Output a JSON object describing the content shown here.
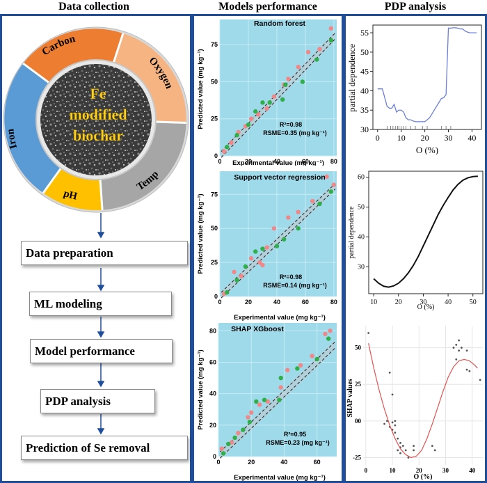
{
  "headers": {
    "data_collection": "Data collection",
    "models_performance": "Models performance",
    "pdp_analysis": "PDP analysis"
  },
  "ring": {
    "segments": [
      "Carbon",
      "Oxygen",
      "Temp",
      "pH",
      "Iron"
    ],
    "center_text": [
      "Fe",
      "modified",
      "biochar"
    ]
  },
  "steps": [
    "Data preparation",
    "ML modeling",
    "Model performance",
    "PDP analysis",
    "Prediction of Se removal"
  ],
  "colors": {
    "panel_border": "#1f4e9c",
    "plot_bg": "#9fdaeb",
    "pink_points": "#f0888a",
    "green_points": "#2fae4a",
    "carbon": "#ed7d31",
    "oxygen": "#f5b482",
    "temp": "#a6a6a6",
    "ph": "#ffc000",
    "iron": "#5b9bd5"
  },
  "scatter_plots": [
    {
      "title": "Random forest",
      "r2": "R²=0.98",
      "rmse": "RSME=0.35 (mg kg⁻¹)",
      "xlabel": "Experimental value (mg kg⁻¹)",
      "ylabel": "Predicted value (mg kg⁻¹)",
      "xticks": [
        "0",
        "20",
        "40",
        "60",
        "80"
      ],
      "yticks": [
        "0",
        "25",
        "50",
        "75"
      ]
    },
    {
      "title": "Support vector regression",
      "r2": "R²=0.98",
      "rmse": "RSME=0.14 (mg kg⁻¹)",
      "xlabel": "Experimental value (mg kg⁻¹)",
      "ylabel": "Predicted value (mg kg⁻¹)",
      "xticks": [
        "0",
        "20",
        "40",
        "60",
        "80"
      ],
      "yticks": [
        "0",
        "25",
        "50",
        "75"
      ]
    },
    {
      "title": "SHAP XGboost",
      "r2": "R²=0.95",
      "rmse": "RSME=0.23 (mg kg⁻¹)",
      "xlabel": "Experimental value (mg kg⁻¹)",
      "ylabel": "Predicted value (mg kg⁻¹)",
      "xticks": [
        "0",
        "20",
        "40",
        "60"
      ],
      "yticks": [
        "0",
        "20",
        "40",
        "60",
        "80"
      ]
    }
  ],
  "pdp_plots": [
    {
      "ylabel": "partial dependence",
      "xlabel": "O (%)",
      "xticks": [
        "0",
        "10",
        "20",
        "30",
        "40"
      ],
      "yticks": [
        "30",
        "35",
        "40",
        "45",
        "50",
        "55"
      ]
    },
    {
      "ylabel": "partial dependence",
      "xlabel": "O (%)",
      "xticks": [
        "10",
        "20",
        "30",
        "40",
        "50"
      ],
      "yticks": [
        "30",
        "40",
        "50",
        "60"
      ]
    },
    {
      "ylabel": "SHAP values",
      "xlabel": "O (%)",
      "xticks": [
        "0",
        "10",
        "20",
        "30",
        "40"
      ],
      "yticks": [
        "-25",
        "00",
        "25",
        "50"
      ]
    }
  ],
  "chart_data": [
    {
      "type": "scatter",
      "title": "Random forest",
      "xlabel": "Experimental value (mg kg⁻¹)",
      "ylabel": "Predicted value (mg kg⁻¹)",
      "xlim": [
        0,
        82
      ],
      "ylim": [
        0,
        92
      ],
      "series": [
        {
          "values": [
            [
              3,
              3
            ],
            [
              8,
              9
            ],
            [
              13,
              16
            ],
            [
              18,
              20
            ],
            [
              22,
              25
            ],
            [
              27,
              28
            ],
            [
              33,
              32
            ],
            [
              38,
              40
            ],
            [
              45,
              48
            ],
            [
              48,
              52
            ],
            [
              55,
              60
            ],
            [
              62,
              70
            ],
            [
              70,
              72
            ],
            [
              78,
              86
            ]
          ]
        },
        {
          "values": [
            [
              5,
              6
            ],
            [
              12,
              14
            ],
            [
              20,
              21
            ],
            [
              25,
              30
            ],
            [
              30,
              36
            ],
            [
              35,
              36
            ],
            [
              44,
              38
            ],
            [
              46,
              48
            ],
            [
              58,
              50
            ],
            [
              68,
              65
            ],
            [
              78,
              78
            ]
          ]
        }
      ]
    },
    {
      "type": "scatter",
      "title": "Support vector regression",
      "xlabel": "Experimental value (mg kg⁻¹)",
      "ylabel": "Predicted value (mg kg⁻¹)",
      "xlim": [
        0,
        82
      ],
      "ylim": [
        0,
        92
      ],
      "series": [
        {
          "values": [
            [
              3,
              2
            ],
            [
              10,
              18
            ],
            [
              15,
              15
            ],
            [
              22,
              28
            ],
            [
              28,
              25
            ],
            [
              30,
              23
            ],
            [
              33,
              36
            ],
            [
              38,
              50
            ],
            [
              48,
              58
            ],
            [
              55,
              62
            ],
            [
              65,
              70
            ],
            [
              75,
              88
            ],
            [
              80,
              82
            ]
          ]
        },
        {
          "values": [
            [
              5,
              3
            ],
            [
              12,
              12
            ],
            [
              18,
              22
            ],
            [
              25,
              33
            ],
            [
              30,
              35
            ],
            [
              40,
              37
            ],
            [
              45,
              42
            ],
            [
              55,
              50
            ],
            [
              70,
              68
            ],
            [
              78,
              77
            ]
          ]
        }
      ]
    },
    {
      "type": "scatter",
      "title": "SHAP XGboost",
      "xlabel": "Experimental value (mg kg⁻¹)",
      "ylabel": "Predicted value (mg kg⁻¹)",
      "xlim": [
        0,
        72
      ],
      "ylim": [
        0,
        85
      ],
      "series": [
        {
          "values": [
            [
              2,
              5
            ],
            [
              8,
              9
            ],
            [
              12,
              15
            ],
            [
              18,
              25
            ],
            [
              20,
              28
            ],
            [
              25,
              33
            ],
            [
              30,
              35
            ],
            [
              38,
              44
            ],
            [
              42,
              55
            ],
            [
              50,
              58
            ],
            [
              57,
              64
            ],
            [
              65,
              78
            ],
            [
              68,
              80
            ]
          ]
        },
        {
          "values": [
            [
              3,
              2
            ],
            [
              6,
              8
            ],
            [
              10,
              12
            ],
            [
              15,
              17
            ],
            [
              19,
              22
            ],
            [
              23,
              35
            ],
            [
              28,
              36
            ],
            [
              37,
              36
            ],
            [
              38,
              50
            ],
            [
              48,
              56
            ],
            [
              60,
              62
            ],
            [
              67,
              75
            ]
          ]
        }
      ]
    },
    {
      "type": "line",
      "xlabel": "O (%)",
      "ylabel": "partial dependence",
      "xlim": [
        -2,
        44
      ],
      "ylim": [
        30,
        57
      ],
      "x": [
        0,
        2,
        4,
        5,
        6,
        7,
        8,
        9,
        10,
        11,
        12,
        13,
        14,
        15,
        16,
        17,
        18,
        19,
        20,
        21,
        22,
        23,
        24,
        25,
        26,
        27,
        28,
        29,
        30,
        31,
        32,
        33,
        34,
        35,
        36,
        37,
        38,
        39,
        40,
        41,
        42
      ],
      "y": [
        40.5,
        40.5,
        36,
        35.5,
        35.5,
        36.5,
        34.5,
        35,
        35,
        34.5,
        33,
        32.5,
        32.5,
        32.2,
        32,
        32,
        32,
        32,
        32,
        32.5,
        33,
        34,
        35,
        36,
        37,
        38,
        38.2,
        39,
        56.2,
        56.2,
        56.3,
        56.3,
        56.2,
        56,
        56,
        55.5,
        55.2,
        55,
        55,
        55,
        55
      ],
      "rug": [
        4,
        5.5,
        6.5,
        7.5,
        8.5,
        9,
        10,
        11,
        12,
        14,
        16,
        19,
        21,
        27,
        29,
        31
      ]
    },
    {
      "type": "line",
      "xlabel": "O (%)",
      "ylabel": "partial dependence",
      "xlim": [
        8,
        54
      ],
      "ylim": [
        21,
        62
      ],
      "x": [
        10,
        12,
        14,
        16,
        18,
        20,
        22,
        24,
        26,
        28,
        30,
        32,
        34,
        36,
        38,
        40,
        42,
        44,
        46,
        48,
        50,
        52
      ],
      "y": [
        26,
        24.5,
        23.5,
        23.2,
        23.6,
        24.5,
        26,
        28,
        30.5,
        33.5,
        37,
        40.5,
        44,
        47.5,
        50.5,
        53.2,
        55.7,
        57.6,
        59,
        59.8,
        60.2,
        60.3
      ]
    },
    {
      "type": "scatter",
      "xlabel": "O (%)",
      "ylabel": "SHAP values",
      "xlim": [
        -1,
        44
      ],
      "ylim": [
        -30,
        65
      ],
      "series": [
        {
          "values": [
            [
              1,
              60
            ],
            [
              7,
              -2
            ],
            [
              8,
              0
            ],
            [
              9,
              33
            ],
            [
              9,
              -4
            ],
            [
              10,
              -1
            ],
            [
              10,
              -6
            ],
            [
              10,
              18
            ],
            [
              11,
              -3
            ],
            [
              11,
              -8
            ],
            [
              11,
              0
            ],
            [
              12,
              -12
            ],
            [
              12,
              -20
            ],
            [
              13,
              -22
            ],
            [
              13,
              -15
            ],
            [
              13,
              -18
            ],
            [
              14,
              -17
            ],
            [
              15,
              -20
            ],
            [
              16,
              -25
            ],
            [
              18,
              -17
            ],
            [
              18,
              -20
            ],
            [
              25,
              -17
            ],
            [
              26,
              -20
            ],
            [
              33,
              50
            ],
            [
              34,
              52
            ],
            [
              34,
              42
            ],
            [
              35,
              55
            ],
            [
              35,
              48
            ],
            [
              36,
              50
            ],
            [
              38,
              48
            ],
            [
              38,
              35
            ],
            [
              39,
              34
            ],
            [
              43,
              28
            ]
          ]
        },
        {
          "type": "line",
          "x": [
            1,
            3,
            5,
            7,
            9,
            11,
            13,
            15,
            17,
            19,
            21,
            23,
            25,
            27,
            29,
            31,
            33,
            35,
            37,
            39,
            41,
            42
          ],
          "y": [
            53,
            36,
            21,
            8,
            -3,
            -12,
            -19,
            -23,
            -25,
            -24,
            -20,
            -12,
            -2,
            9,
            20,
            30,
            37,
            41,
            42,
            41,
            38,
            36
          ]
        }
      ]
    }
  ]
}
